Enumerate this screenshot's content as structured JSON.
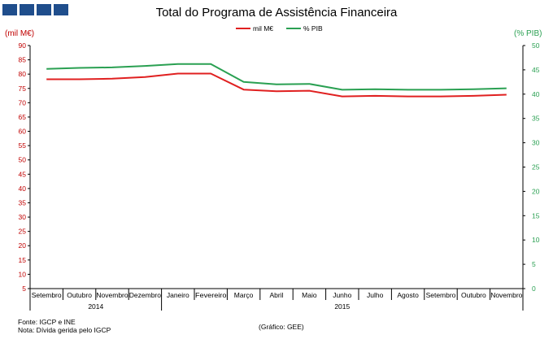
{
  "logo": {
    "color": "#1f4e8c",
    "blocks": 4
  },
  "chart_data": {
    "type": "line",
    "title": "Total do Programa de Assistência Financeira",
    "y_left_label": "(mil M€)",
    "y_right_label": "(% PIB)",
    "y_left_range": [
      5,
      90
    ],
    "y_left_ticks": [
      5,
      10,
      15,
      20,
      25,
      30,
      35,
      40,
      45,
      50,
      55,
      60,
      65,
      70,
      75,
      80,
      85,
      90
    ],
    "y_right_range": [
      0,
      50
    ],
    "y_right_ticks": [
      0,
      5,
      10,
      15,
      20,
      25,
      30,
      35,
      40,
      45,
      50
    ],
    "categories": [
      "Setembro",
      "Outubro",
      "Novembro",
      "Dezembro",
      "Janeiro",
      "Fevereiro",
      "Março",
      "Abril",
      "Maio",
      "Junho",
      "Julho",
      "Agosto",
      "Setembro",
      "Outubro",
      "Novembro"
    ],
    "year_groups": [
      {
        "label": "2014",
        "start": 0,
        "end": 3
      },
      {
        "label": "2015",
        "start": 4,
        "end": 14
      }
    ],
    "series": [
      {
        "name": "mil M€",
        "axis": "left",
        "color": "#e02020",
        "values": [
          78.2,
          78.2,
          78.4,
          79.0,
          80.2,
          80.2,
          74.6,
          74.0,
          74.2,
          72.2,
          72.4,
          72.2,
          72.2,
          72.4,
          72.8
        ]
      },
      {
        "name": "% PIB",
        "axis": "right",
        "color": "#2aa052",
        "values": [
          45.2,
          45.4,
          45.5,
          45.8,
          46.2,
          46.2,
          42.5,
          42.0,
          42.1,
          40.9,
          41.0,
          40.9,
          40.9,
          41.0,
          41.2
        ]
      }
    ],
    "left_axis_color": "#c00000",
    "right_axis_color": "#2aa052",
    "grid": false,
    "legend_position": "top-center"
  },
  "footer": {
    "source": "Fonte: IGCP e INE",
    "note": "Nota: Dívida gerida pelo IGCP",
    "credit": "(Gráfico: GEE)"
  }
}
